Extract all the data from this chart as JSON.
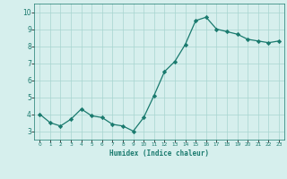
{
  "x": [
    0,
    1,
    2,
    3,
    4,
    5,
    6,
    7,
    8,
    9,
    10,
    11,
    12,
    13,
    14,
    15,
    16,
    17,
    18,
    19,
    20,
    21,
    22,
    23
  ],
  "y": [
    4.0,
    3.5,
    3.3,
    3.7,
    4.3,
    3.9,
    3.8,
    3.4,
    3.3,
    3.0,
    3.8,
    5.1,
    6.5,
    7.1,
    8.1,
    9.5,
    9.7,
    9.0,
    8.85,
    8.7,
    8.4,
    8.3,
    8.2,
    8.3
  ],
  "xlabel": "Humidex (Indice chaleur)",
  "ylim": [
    2.5,
    10.5
  ],
  "xlim": [
    -0.5,
    23.5
  ],
  "yticks": [
    3,
    4,
    5,
    6,
    7,
    8,
    9,
    10
  ],
  "xticks": [
    0,
    1,
    2,
    3,
    4,
    5,
    6,
    7,
    8,
    9,
    10,
    11,
    12,
    13,
    14,
    15,
    16,
    17,
    18,
    19,
    20,
    21,
    22,
    23
  ],
  "xtick_labels": [
    "0",
    "1",
    "2",
    "3",
    "4",
    "5",
    "6",
    "7",
    "8",
    "9",
    "10",
    "11",
    "12",
    "13",
    "14",
    "15",
    "16",
    "17",
    "18",
    "19",
    "20",
    "21",
    "22",
    "23"
  ],
  "line_color": "#1a7a6e",
  "marker_color": "#1a7a6e",
  "bg_color": "#d6efed",
  "grid_color": "#a8d5d0",
  "xlabel_color": "#1a7a6e",
  "tick_color": "#1a7a6e"
}
